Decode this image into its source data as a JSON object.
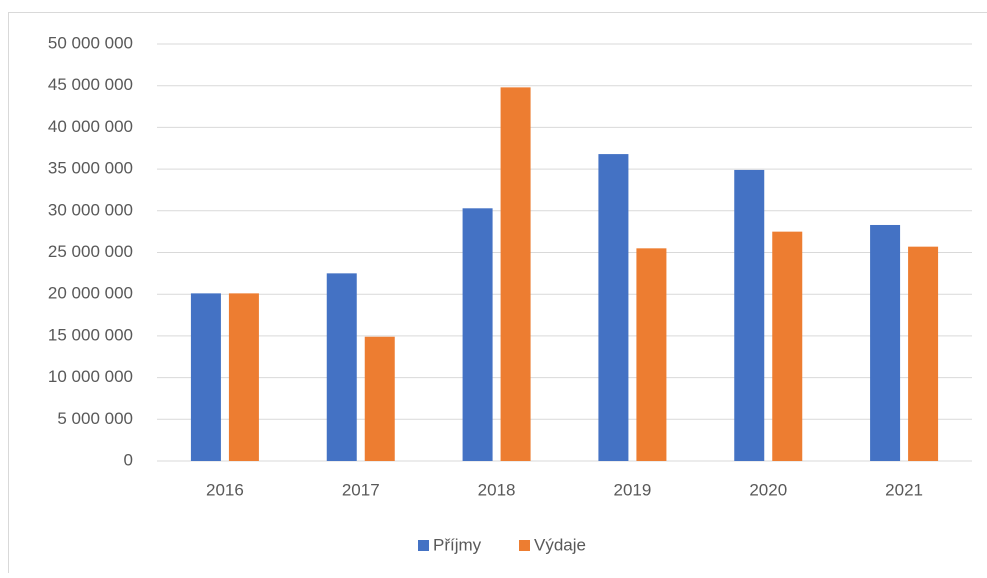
{
  "chart_data": {
    "type": "bar",
    "categories": [
      "2016",
      "2017",
      "2018",
      "2019",
      "2020",
      "2021"
    ],
    "series": [
      {
        "name": "Příjmy",
        "color": "#4472c4",
        "values": [
          20100000,
          22500000,
          30300000,
          36800000,
          34900000,
          28300000
        ]
      },
      {
        "name": "Výdaje",
        "color": "#ed7d31",
        "values": [
          20100000,
          14900000,
          44800000,
          25500000,
          27500000,
          25700000
        ]
      }
    ],
    "ylim": [
      0,
      50000000
    ],
    "yticks": [
      0,
      {
        "value": 5000000,
        "label": "5 000 000"
      },
      {
        "value": 10000000,
        "label": "10 000 000"
      },
      {
        "value": 15000000,
        "label": "15 000 000"
      },
      {
        "value": 20000000,
        "label": "20 000 000"
      },
      {
        "value": 25000000,
        "label": "25 000 000"
      },
      {
        "value": 30000000,
        "label": "30 000 000"
      },
      {
        "value": 35000000,
        "label": "35 000 000"
      },
      {
        "value": 40000000,
        "label": "40 000 000"
      },
      {
        "value": 45000000,
        "label": "45 000 000"
      },
      {
        "value": 50000000,
        "label": "50 000 000"
      }
    ],
    "grid": true,
    "legend": "bottom"
  }
}
